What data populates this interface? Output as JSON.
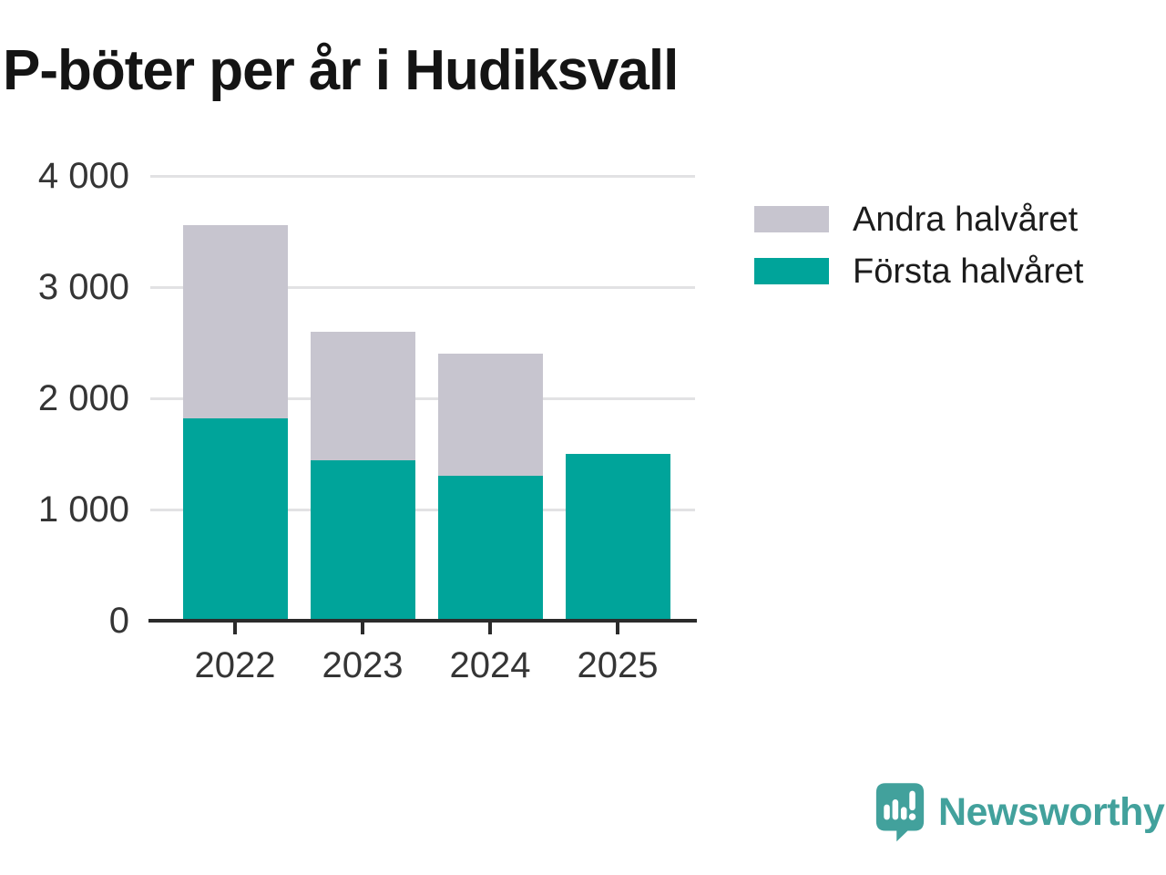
{
  "title": "P-böter per år i Hudiksvall",
  "colors": {
    "first_half": "#00a49a",
    "second_half": "#c7c5cf",
    "axis": "#2b2b2b",
    "gridline": "#e2e2e4",
    "tick_label": "#353535",
    "title": "#141414",
    "brand": "#42a19c"
  },
  "legend": {
    "items": [
      {
        "label": "Andra halvåret",
        "color": "#c7c5cf"
      },
      {
        "label": "Första halvåret",
        "color": "#00a49a"
      }
    ]
  },
  "brand": {
    "name": "Newsworthy",
    "icon": "newsworthy-speech-bubble-chart-icon"
  },
  "chart_data": {
    "type": "bar",
    "stacked": true,
    "title": "P-böter per år i Hudiksvall",
    "categories": [
      "2022",
      "2023",
      "2024",
      "2025"
    ],
    "series": [
      {
        "name": "Första halvåret",
        "color": "#00a49a",
        "values": [
          1820,
          1440,
          1300,
          1500
        ]
      },
      {
        "name": "Andra halvåret",
        "color": "#c7c5cf",
        "values": [
          1740,
          1160,
          1100,
          0
        ]
      }
    ],
    "totals": [
      3560,
      2600,
      2400,
      1500
    ],
    "xlabel": "",
    "ylabel": "",
    "ylim": [
      0,
      4000
    ],
    "yticks": [
      0,
      1000,
      2000,
      3000,
      4000
    ],
    "ytick_labels": [
      "0",
      "1 000",
      "2 000",
      "3 000",
      "4 000"
    ],
    "grid": "horizontal",
    "legend_position": "top-right"
  }
}
